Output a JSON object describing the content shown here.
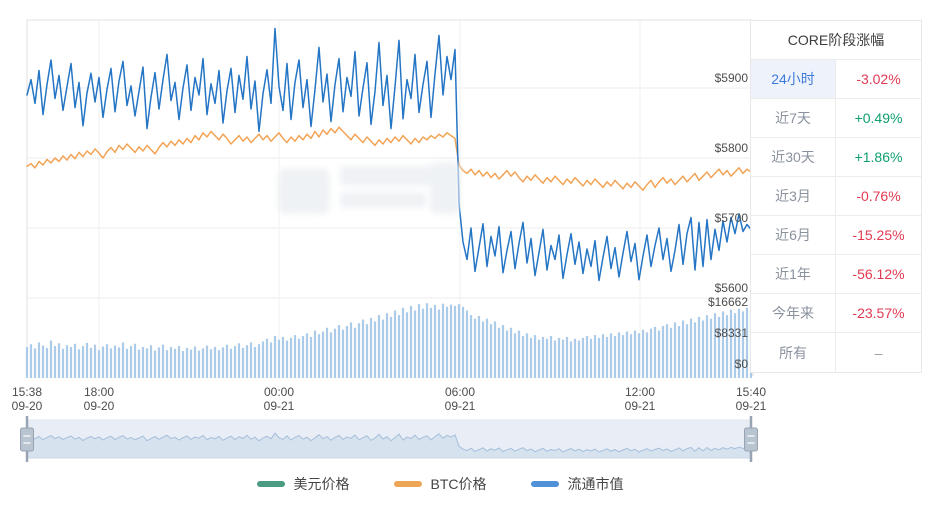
{
  "panel": {
    "title": "CORE阶段涨幅",
    "rows": [
      {
        "label": "24小时",
        "value": "-3.02%",
        "value_color": "red",
        "active": true
      },
      {
        "label": "近7天",
        "value": "+0.49%",
        "value_color": "green",
        "active": false
      },
      {
        "label": "近30天",
        "value": "+1.86%",
        "value_color": "green",
        "active": false
      },
      {
        "label": "近3月",
        "value": "-0.76%",
        "value_color": "red",
        "active": false
      },
      {
        "label": "近6月",
        "value": "-15.25%",
        "value_color": "red",
        "active": false
      },
      {
        "label": "近1年",
        "value": "-56.12%",
        "value_color": "red",
        "active": false
      },
      {
        "label": "今年来",
        "value": "-23.57%",
        "value_color": "red",
        "active": false
      },
      {
        "label": "所有",
        "value": "–",
        "value_color": "gray",
        "active": false
      }
    ]
  },
  "legend": {
    "items": [
      {
        "label": "美元价格",
        "color": "#4b9b83"
      },
      {
        "label": "BTC价格",
        "color": "#eda556"
      },
      {
        "label": "流通市值",
        "color": "#4f90d9"
      }
    ]
  },
  "colors": {
    "red": "#e23a52",
    "green": "#0c9e6e",
    "gray": "#999999",
    "blue_line": "#2575c5",
    "orange_line": "#f2a456",
    "volume_bar": "#abcbe9",
    "grid": "#ededed",
    "border": "#e2e2e2",
    "axis_text": "#4d4d4d",
    "nav_bg": "#e9eef6",
    "nav_area": "#d7e2ef",
    "nav_line": "#a4bedb",
    "handle_fill": "#b9c4d1",
    "handle_stroke": "#98a4b3"
  },
  "chart_data": {
    "type": "line",
    "title": "",
    "x_axis": {
      "ticks": [
        {
          "time": "15:38",
          "date": "09-20"
        },
        {
          "time": "18:00",
          "date": "09-20"
        },
        {
          "time": "00:00",
          "date": "09-21"
        },
        {
          "time": "06:00",
          "date": "09-21"
        },
        {
          "time": "12:00",
          "date": "09-21"
        },
        {
          "time": "15:40",
          "date": "09-21"
        }
      ]
    },
    "y_axis_price": {
      "labels": [
        "$5900",
        "$5800",
        "$5700",
        "$5600"
      ],
      "values": [
        5900,
        5800,
        5700,
        5600
      ]
    },
    "y_axis_volume": {
      "labels": [
        "$16662",
        "$8331",
        "$0"
      ],
      "values": [
        16662,
        8331,
        0
      ],
      "max": 16662
    },
    "series": [
      {
        "name": "美元价格",
        "color": "#4b9b83",
        "visible": false,
        "values": []
      },
      {
        "name": "BTC价格",
        "color": "#f2a456",
        "visible": true,
        "values": [
          5788,
          5792,
          5786,
          5795,
          5790,
          5798,
          5793,
          5800,
          5795,
          5803,
          5797,
          5805,
          5799,
          5808,
          5802,
          5810,
          5805,
          5813,
          5807,
          5800,
          5809,
          5815,
          5808,
          5818,
          5812,
          5820,
          5814,
          5808,
          5816,
          5810,
          5818,
          5812,
          5806,
          5815,
          5822,
          5816,
          5824,
          5818,
          5826,
          5820,
          5828,
          5822,
          5832,
          5826,
          5836,
          5830,
          5838,
          5832,
          5826,
          5834,
          5828,
          5820,
          5826,
          5832,
          5824,
          5830,
          5822,
          5828,
          5834,
          5826,
          5832,
          5824,
          5830,
          5836,
          5828,
          5822,
          5830,
          5824,
          5832,
          5826,
          5834,
          5828,
          5838,
          5830,
          5840,
          5834,
          5842,
          5836,
          5844,
          5838,
          5832,
          5826,
          5834,
          5828,
          5822,
          5830,
          5824,
          5818,
          5826,
          5820,
          5828,
          5822,
          5830,
          5824,
          5832,
          5826,
          5820,
          5828,
          5822,
          5830,
          5826,
          5832,
          5828,
          5834,
          5830,
          5836,
          5832,
          5828,
          5790,
          5782,
          5778,
          5784,
          5776,
          5782,
          5774,
          5780,
          5772,
          5778,
          5770,
          5776,
          5782,
          5774,
          5780,
          5772,
          5766,
          5774,
          5768,
          5776,
          5770,
          5764,
          5772,
          5766,
          5774,
          5768,
          5762,
          5770,
          5764,
          5772,
          5766,
          5760,
          5768,
          5762,
          5770,
          5764,
          5758,
          5766,
          5760,
          5768,
          5762,
          5756,
          5764,
          5758,
          5766,
          5760,
          5754,
          5762,
          5768,
          5758,
          5766,
          5772,
          5764,
          5770,
          5762,
          5768,
          5774,
          5766,
          5772,
          5778,
          5768,
          5774,
          5780,
          5772,
          5778,
          5784,
          5776,
          5782,
          5774,
          5780,
          5786,
          5778,
          5784,
          5780
        ]
      },
      {
        "name": "流通市值",
        "color": "#2575c5",
        "visible": true,
        "values": [
          5890,
          5912,
          5878,
          5925,
          5862,
          5905,
          5940,
          5885,
          5918,
          5868,
          5902,
          5935,
          5872,
          5908,
          5846,
          5893,
          5921,
          5880,
          5915,
          5858,
          5898,
          5928,
          5866,
          5910,
          5938,
          5875,
          5903,
          5860,
          5895,
          5930,
          5842,
          5887,
          5922,
          5870,
          5912,
          5948,
          5882,
          5908,
          5855,
          5900,
          5933,
          5868,
          5915,
          5890,
          5942,
          5862,
          5906,
          5878,
          5925,
          5850,
          5896,
          5928,
          5865,
          5918,
          5884,
          5945,
          5870,
          5910,
          5838,
          5892,
          5926,
          5878,
          5985,
          5902,
          5868,
          5935,
          5855,
          5908,
          5940,
          5872,
          5912,
          5845,
          5898,
          5958,
          5880,
          5920,
          5852,
          5905,
          5942,
          5866,
          5915,
          5888,
          5952,
          5860,
          5900,
          5936,
          5848,
          5895,
          5965,
          5875,
          5918,
          5842,
          5902,
          5968,
          5856,
          5912,
          5885,
          5948,
          5865,
          5905,
          5938,
          5858,
          5920,
          5975,
          5890,
          5945,
          5912,
          5955,
          5735,
          5680,
          5655,
          5700,
          5638,
          5672,
          5706,
          5645,
          5688,
          5660,
          5702,
          5636,
          5668,
          5695,
          5642,
          5678,
          5708,
          5650,
          5685,
          5632,
          5665,
          5698,
          5640,
          5675,
          5655,
          5690,
          5628,
          5662,
          5692,
          5648,
          5680,
          5635,
          5670,
          5645,
          5682,
          5625,
          5658,
          5688,
          5642,
          5672,
          5630,
          5664,
          5695,
          5652,
          5678,
          5626,
          5660,
          5690,
          5645,
          5675,
          5700,
          5655,
          5685,
          5638,
          5668,
          5705,
          5648,
          5692,
          5715,
          5640,
          5708,
          5645,
          5712,
          5655,
          5698,
          5668,
          5710,
          5680,
          5715,
          5692,
          5720,
          5695,
          5705,
          5698
        ]
      }
    ],
    "volume_values": [
      6800,
      7400,
      6500,
      7800,
      7100,
      6600,
      8200,
      7000,
      7600,
      6400,
      7200,
      6800,
      7500,
      6300,
      7000,
      7700,
      6600,
      7300,
      6100,
      6900,
      7400,
      6500,
      7100,
      6700,
      7800,
      6400,
      7000,
      7500,
      6200,
      6800,
      6500,
      7200,
      6000,
      6700,
      7300,
      6100,
      6800,
      6400,
      7000,
      5900,
      6600,
      6200,
      6900,
      6000,
      6500,
      7100,
      6300,
      6800,
      6100,
      6700,
      7300,
      6400,
      7000,
      7600,
      6600,
      7200,
      7800,
      6800,
      7400,
      8000,
      8600,
      7800,
      9200,
      8400,
      9000,
      8200,
      8800,
      9400,
      8600,
      9200,
      9800,
      9000,
      10400,
      9600,
      10200,
      11000,
      10000,
      10800,
      11600,
      10600,
      11400,
      12200,
      11000,
      12000,
      12800,
      11800,
      13200,
      12400,
      13800,
      12800,
      14200,
      13400,
      14800,
      13800,
      15400,
      14400,
      15800,
      14800,
      16200,
      15200,
      16400,
      15400,
      16000,
      15000,
      16300,
      15600,
      16100,
      15800,
      16200,
      15600,
      14800,
      13800,
      13000,
      13600,
      12400,
      13000,
      11800,
      12400,
      11000,
      11600,
      10400,
      11000,
      9800,
      10400,
      9200,
      9800,
      8800,
      9400,
      8400,
      9000,
      8600,
      9200,
      8200,
      8800,
      8400,
      9000,
      8000,
      8600,
      8200,
      8800,
      9200,
      8600,
      9400,
      8800,
      9600,
      9000,
      9800,
      9200,
      10000,
      9400,
      10200,
      9600,
      10400,
      9800,
      10600,
      10000,
      10800,
      11200,
      10400,
      11400,
      11800,
      11000,
      12200,
      11400,
      12600,
      11800,
      13000,
      12200,
      13400,
      12600,
      13800,
      13000,
      14200,
      13400,
      14600,
      13800,
      15000,
      14200,
      15200,
      14600,
      15400,
      14800
    ]
  }
}
